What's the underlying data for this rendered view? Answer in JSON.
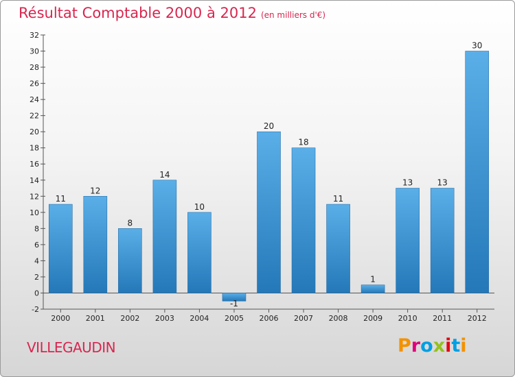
{
  "header": {
    "title": "Résultat Comptable 2000 à 2012",
    "subtitle": "(en milliers d'€)"
  },
  "footer": {
    "commune": "VILLEGAUDIN",
    "logo": "Proxiti"
  },
  "colors": {
    "title": "#d8264f",
    "bar_top": "#5aafe8",
    "bar_bottom": "#2478b8",
    "logo_letters": [
      "#f39200",
      "#e2007a",
      "#009fe3",
      "#95c11f",
      "#e30613",
      "#009fe3",
      "#f39200"
    ]
  },
  "chart_data": {
    "type": "bar",
    "title": "Résultat Comptable 2000 à 2012",
    "subtitle": "(en milliers d'€)",
    "xlabel": "",
    "ylabel": "",
    "categories": [
      "2000",
      "2001",
      "2002",
      "2003",
      "2004",
      "2005",
      "2006",
      "2007",
      "2008",
      "2009",
      "2010",
      "2011",
      "2012"
    ],
    "values": [
      11,
      12,
      8,
      14,
      10,
      -1,
      20,
      18,
      11,
      1,
      13,
      13,
      30
    ],
    "data_labels": [
      "11",
      "12",
      "8",
      "14",
      "10",
      "-1",
      "20",
      "18",
      "11",
      "1",
      "13",
      "13",
      "30"
    ],
    "ylim": [
      -2,
      32
    ],
    "yticks": [
      "-2",
      "0",
      "2",
      "4",
      "6",
      "8",
      "10",
      "12",
      "14",
      "16",
      "18",
      "20",
      "22",
      "24",
      "26",
      "28",
      "30",
      "32"
    ],
    "grid": false,
    "legend": "none"
  }
}
